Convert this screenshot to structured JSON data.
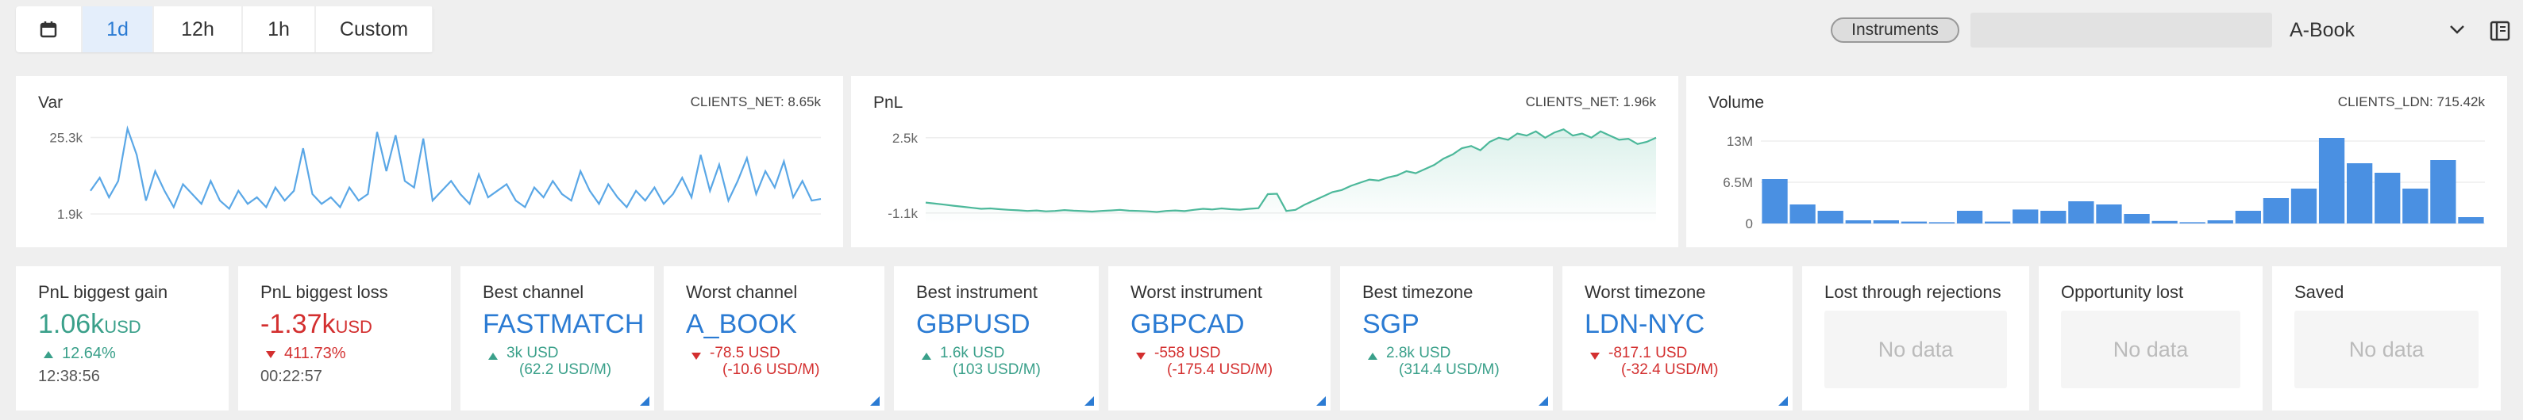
{
  "toolbar": {
    "ranges": [
      "1d",
      "12h",
      "1h",
      "Custom"
    ],
    "active": 0,
    "filter": "Instruments",
    "book": "A-Book"
  },
  "chart_data": [
    {
      "type": "line",
      "title": "Var",
      "annotation": "CLIENTS_NET: 8.65k",
      "color": "#5aa7e6",
      "area": false,
      "ylim": [
        -1000,
        31000
      ],
      "yticks": [
        {
          "value": 1900,
          "label": "1.9k"
        },
        {
          "value": 25300,
          "label": "25.3k"
        }
      ],
      "grid": true,
      "values": [
        9000,
        13000,
        7000,
        12000,
        28000,
        20000,
        6000,
        15000,
        9000,
        4000,
        11000,
        8000,
        5000,
        12000,
        6000,
        3500,
        9000,
        5000,
        7000,
        4000,
        10000,
        6000,
        9000,
        22000,
        8000,
        5000,
        7000,
        4000,
        10000,
        6000,
        8000,
        27000,
        15000,
        26000,
        12000,
        10000,
        25000,
        6000,
        9000,
        12000,
        8000,
        5000,
        14000,
        7000,
        9000,
        11000,
        6000,
        4000,
        10000,
        7000,
        12000,
        8000,
        6000,
        15000,
        9000,
        5000,
        11000,
        7000,
        4000,
        9000,
        6000,
        10000,
        5000,
        8000,
        13000,
        7000,
        20000,
        9000,
        17000,
        6000,
        12000,
        19000,
        8000,
        15000,
        10000,
        18000,
        7000,
        12000,
        6000,
        6500
      ]
    },
    {
      "type": "line",
      "title": "PnL",
      "annotation": "CLIENTS_NET: 1.96k",
      "color": "#4cb89a",
      "area": true,
      "ylim": [
        -1600,
        3400
      ],
      "yticks": [
        {
          "value": -1100,
          "label": "-1.1k"
        },
        {
          "value": 2500,
          "label": "2.5k"
        }
      ],
      "grid": true,
      "values": [
        -600,
        -650,
        -700,
        -750,
        -800,
        -850,
        -900,
        -880,
        -920,
        -950,
        -970,
        -1000,
        -980,
        -1020,
        -1000,
        -960,
        -990,
        -1010,
        -1030,
        -1000,
        -980,
        -950,
        -990,
        -1000,
        -1020,
        -1050,
        -1000,
        -980,
        -1010,
        -950,
        -900,
        -930,
        -880,
        -920,
        -940,
        -900,
        -870,
        -200,
        -180,
        -1000,
        -950,
        -700,
        -500,
        -300,
        -100,
        0,
        200,
        350,
        500,
        450,
        600,
        700,
        900,
        800,
        1000,
        1200,
        1500,
        1700,
        2000,
        2100,
        1900,
        2300,
        2500,
        2400,
        2700,
        2600,
        2800,
        2500,
        2750,
        2900,
        2600,
        2700,
        2500,
        2800,
        2600,
        2400,
        2450,
        2200,
        2300,
        2500
      ]
    },
    {
      "type": "bar",
      "title": "Volume",
      "annotation": "CLIENTS_LDN: 715.42k",
      "color": "#4a90e2",
      "ylim": [
        0,
        16500000
      ],
      "yticks": [
        0,
        {
          "value": 6500000,
          "label": "6.5M"
        },
        {
          "value": 13000000,
          "label": "13M"
        }
      ],
      "grid": true,
      "values": [
        7000000,
        3000000,
        2000000,
        500000,
        500000,
        300000,
        200000,
        2000000,
        300000,
        2200000,
        2000000,
        3500000,
        3000000,
        1500000,
        400000,
        200000,
        500000,
        2000000,
        4000000,
        5500000,
        13500000,
        9500000,
        8000000,
        5500000,
        10000000,
        1000000
      ]
    }
  ],
  "cards": [
    {
      "title": "PnL biggest gain",
      "value": "1.06k",
      "unit": "USD",
      "trend": "up",
      "change": "12.64%",
      "time": "12:38:56"
    },
    {
      "title": "PnL biggest loss",
      "value": "-1.37k",
      "unit": "USD",
      "trend": "down",
      "change": "411.73%",
      "time": "00:22:57"
    },
    {
      "title": "Best channel",
      "value": "FASTMATCH",
      "trend": "up",
      "detail": "3k USD",
      "rate": "(62.2 USD/M)"
    },
    {
      "title": "Worst channel",
      "value": "A_BOOK",
      "trend": "down",
      "detail": "-78.5 USD",
      "rate": "(-10.6 USD/M)"
    },
    {
      "title": "Best instrument",
      "value": "GBPUSD",
      "trend": "up",
      "detail": "1.6k USD",
      "rate": "(103 USD/M)"
    },
    {
      "title": "Worst instrument",
      "value": "GBPCAD",
      "trend": "down",
      "detail": "-558 USD",
      "rate": "(-175.4 USD/M)"
    },
    {
      "title": "Best timezone",
      "value": "SGP",
      "trend": "up",
      "detail": "2.8k USD",
      "rate": "(314.4 USD/M)"
    },
    {
      "title": "Worst timezone",
      "value": "LDN-NYC",
      "trend": "down",
      "detail": "-817.1 USD",
      "rate": "(-32.4 USD/M)"
    },
    {
      "title": "Lost through rejections",
      "empty": "No data"
    },
    {
      "title": "Opportunity lost",
      "empty": "No data"
    },
    {
      "title": "Saved",
      "empty": "No data"
    }
  ]
}
